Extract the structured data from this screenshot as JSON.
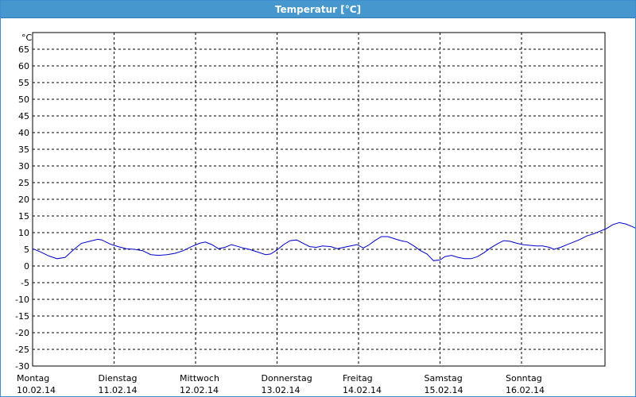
{
  "window": {
    "title": "Temperatur [°C]"
  },
  "colors": {
    "titlebar": "#4797cf",
    "series": "#0000c8",
    "grid": "#000000"
  },
  "chart_data": {
    "type": "line",
    "ylabel": "°C",
    "ylim": [
      -30,
      70
    ],
    "yticks": [
      -30,
      -25,
      -20,
      -15,
      -10,
      -5,
      0,
      5,
      10,
      15,
      20,
      25,
      30,
      35,
      40,
      45,
      50,
      55,
      60,
      65
    ],
    "grid": true,
    "x_days": [
      {
        "day": "Montag",
        "date": "10.02.14"
      },
      {
        "day": "Dienstag",
        "date": "11.02.14"
      },
      {
        "day": "Mittwoch",
        "date": "12.02.14"
      },
      {
        "day": "Donnerstag",
        "date": "13.02.14"
      },
      {
        "day": "Freitag",
        "date": "14.02.14"
      },
      {
        "day": "Samstag",
        "date": "15.02.14"
      },
      {
        "day": "Sonntag",
        "date": "16.02.14"
      }
    ],
    "x_unit": "days since 10.02.14 00:00",
    "series": [
      {
        "values": [
          [
            0.0,
            5.2
          ],
          [
            0.1,
            4.2
          ],
          [
            0.2,
            3.0
          ],
          [
            0.3,
            2.2
          ],
          [
            0.4,
            2.6
          ],
          [
            0.5,
            4.8
          ],
          [
            0.6,
            6.8
          ],
          [
            0.7,
            7.4
          ],
          [
            0.8,
            8.0
          ],
          [
            0.85,
            7.8
          ],
          [
            0.95,
            6.6
          ],
          [
            1.05,
            5.8
          ],
          [
            1.15,
            5.2
          ],
          [
            1.25,
            5.0
          ],
          [
            1.35,
            4.6
          ],
          [
            1.45,
            3.4
          ],
          [
            1.55,
            3.2
          ],
          [
            1.65,
            3.4
          ],
          [
            1.75,
            3.8
          ],
          [
            1.85,
            4.6
          ],
          [
            1.95,
            5.8
          ],
          [
            2.05,
            6.8
          ],
          [
            2.12,
            7.2
          ],
          [
            2.2,
            6.4
          ],
          [
            2.28,
            5.2
          ],
          [
            2.36,
            5.6
          ],
          [
            2.44,
            6.4
          ],
          [
            2.5,
            6.0
          ],
          [
            2.58,
            5.4
          ],
          [
            2.66,
            5.0
          ],
          [
            2.76,
            4.2
          ],
          [
            2.86,
            3.4
          ],
          [
            2.92,
            3.6
          ],
          [
            3.0,
            4.8
          ],
          [
            3.08,
            6.4
          ],
          [
            3.16,
            7.6
          ],
          [
            3.24,
            7.8
          ],
          [
            3.32,
            6.8
          ],
          [
            3.4,
            5.8
          ],
          [
            3.48,
            5.6
          ],
          [
            3.56,
            6.0
          ],
          [
            3.66,
            5.8
          ],
          [
            3.74,
            5.2
          ],
          [
            3.82,
            5.6
          ],
          [
            3.9,
            6.0
          ],
          [
            3.98,
            6.4
          ],
          [
            4.06,
            5.4
          ],
          [
            4.12,
            6.2
          ],
          [
            4.2,
            7.6
          ],
          [
            4.28,
            8.8
          ],
          [
            4.36,
            8.8
          ],
          [
            4.44,
            8.2
          ],
          [
            4.52,
            7.6
          ],
          [
            4.6,
            7.2
          ],
          [
            4.68,
            6.0
          ],
          [
            4.76,
            4.6
          ],
          [
            4.84,
            3.6
          ],
          [
            4.92,
            1.6
          ],
          [
            5.0,
            1.8
          ],
          [
            5.06,
            2.8
          ],
          [
            5.14,
            3.2
          ],
          [
            5.22,
            2.6
          ],
          [
            5.3,
            2.2
          ],
          [
            5.38,
            2.2
          ],
          [
            5.46,
            2.8
          ],
          [
            5.54,
            4.0
          ],
          [
            5.62,
            5.4
          ],
          [
            5.7,
            6.6
          ],
          [
            5.78,
            7.6
          ],
          [
            5.86,
            7.4
          ],
          [
            5.94,
            6.8
          ],
          [
            6.02,
            6.4
          ],
          [
            6.1,
            6.2
          ],
          [
            6.18,
            6.0
          ],
          [
            6.26,
            6.0
          ],
          [
            6.34,
            5.6
          ],
          [
            6.4,
            5.0
          ],
          [
            6.48,
            5.6
          ],
          [
            6.56,
            6.4
          ],
          [
            6.64,
            7.2
          ],
          [
            6.72,
            8.0
          ],
          [
            6.8,
            9.0
          ],
          [
            6.88,
            9.6
          ],
          [
            6.96,
            10.4
          ],
          [
            7.04,
            11.2
          ],
          [
            7.12,
            12.4
          ],
          [
            7.2,
            13.0
          ],
          [
            7.28,
            12.6
          ],
          [
            7.36,
            11.8
          ],
          [
            7.44,
            10.8
          ],
          [
            7.52,
            10.4
          ],
          [
            7.6,
            10.2
          ],
          [
            7.68,
            10.0
          ],
          [
            7.74,
            8.8
          ],
          [
            7.82,
            8.6
          ],
          [
            7.9,
            7.0
          ],
          [
            7.98,
            6.4
          ],
          [
            8.06,
            6.2
          ],
          [
            8.14,
            6.2
          ],
          [
            8.22,
            6.8
          ],
          [
            8.3,
            7.6
          ],
          [
            8.38,
            7.8
          ],
          [
            8.46,
            7.2
          ],
          [
            8.54,
            6.4
          ],
          [
            8.62,
            6.0
          ],
          [
            8.7,
            5.2
          ],
          [
            8.78,
            4.8
          ],
          [
            8.86,
            4.2
          ],
          [
            8.94,
            3.8
          ],
          [
            9.0,
            3.4
          ]
        ]
      }
    ]
  }
}
